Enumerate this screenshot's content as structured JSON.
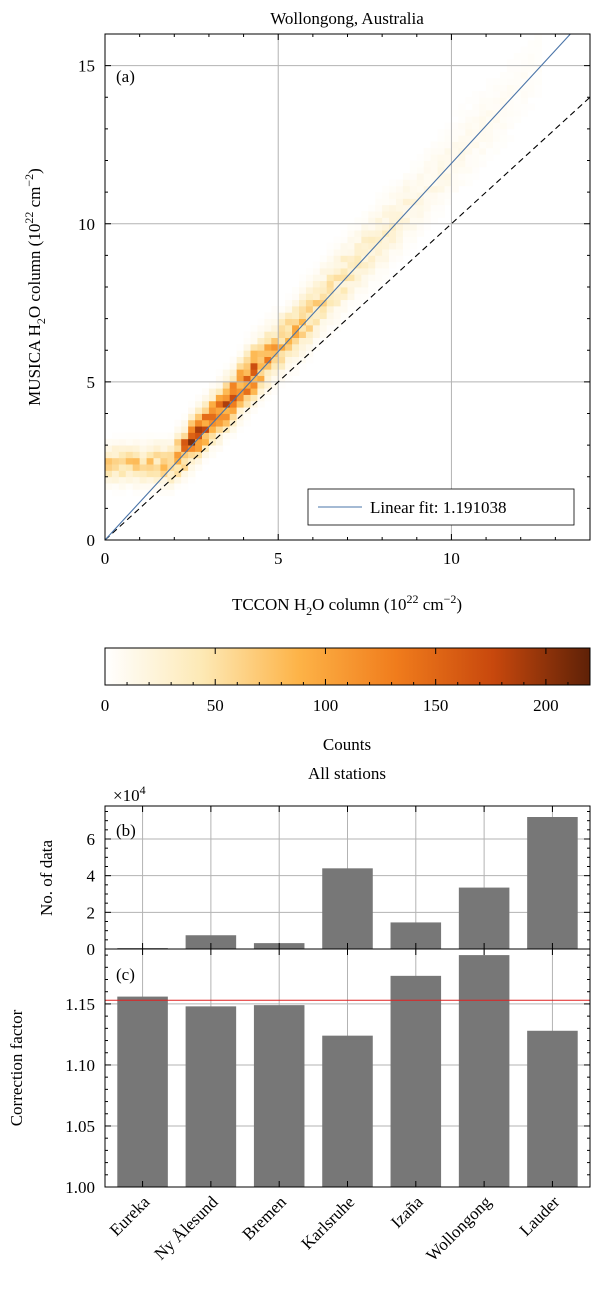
{
  "chart_data": [
    {
      "type": "heatmap",
      "title": "Wollongong, Australia",
      "panel_label": "(a)",
      "xlabel": {
        "base": "TCCON H",
        "sub": "2",
        "mid": "O column (10",
        "sup1": "22",
        "mid2": " cm",
        "sup2": "−2",
        "end": ")"
      },
      "ylabel": {
        "base": "MUSICA H",
        "sub": "2",
        "mid": "O column (10",
        "sup1": "22",
        "mid2": " cm",
        "sup2": "−2",
        "end": ")"
      },
      "xlim": [
        0,
        14
      ],
      "ylim": [
        0,
        16
      ],
      "xticks": [
        0,
        5,
        10
      ],
      "yticks": [
        0,
        5,
        10,
        15
      ],
      "grid": true,
      "fit_line": {
        "name": "Linear fit: 1.191038",
        "slope": 1.191038,
        "color": "#4a74a8"
      },
      "reference_line": {
        "slope": 1,
        "style": "dashed"
      },
      "legend_position": "bottom-right",
      "density_ridge": [
        {
          "x": 1.9,
          "y": 2.4,
          "count": 60
        },
        {
          "x": 2.4,
          "y": 3.0,
          "count": 150
        },
        {
          "x": 3.0,
          "y": 3.7,
          "count": 140
        },
        {
          "x": 3.6,
          "y": 4.4,
          "count": 130
        },
        {
          "x": 4.2,
          "y": 5.2,
          "count": 150
        },
        {
          "x": 4.8,
          "y": 5.9,
          "count": 90
        },
        {
          "x": 5.5,
          "y": 6.6,
          "count": 70
        },
        {
          "x": 6.3,
          "y": 7.6,
          "count": 50
        },
        {
          "x": 7.2,
          "y": 8.7,
          "count": 35
        },
        {
          "x": 8.2,
          "y": 9.8,
          "count": 25
        },
        {
          "x": 9.2,
          "y": 11.0,
          "count": 15
        },
        {
          "x": 10.4,
          "y": 12.4,
          "count": 10
        },
        {
          "x": 11.6,
          "y": 13.8,
          "count": 6
        },
        {
          "x": 12.6,
          "y": 15.2,
          "count": 3
        }
      ]
    },
    {
      "type": "colorbar",
      "label": "Counts",
      "range": [
        0,
        220
      ],
      "ticks": [
        0,
        50,
        100,
        150,
        200
      ],
      "colors": [
        "#ffffff",
        "#fde9b5",
        "#fdb347",
        "#f07c1c",
        "#c8480d",
        "#5e2107"
      ]
    },
    {
      "type": "bar",
      "title": "All stations",
      "panel_label": "(b)",
      "ylabel": "No. of data",
      "multiplier": {
        "base": "×10",
        "exp": "4"
      },
      "categories": [
        "Eureka",
        "Ny Ålesund",
        "Bremen",
        "Karlsruhe",
        "Izaña",
        "Wollongong",
        "Lauder"
      ],
      "values": [
        0.05,
        0.75,
        0.32,
        4.4,
        1.45,
        3.35,
        7.2
      ],
      "ylim": [
        0,
        7.8
      ],
      "yticks": [
        0,
        2,
        4,
        6
      ],
      "grid": true,
      "bar_color": "#777777"
    },
    {
      "type": "bar",
      "panel_label": "(c)",
      "ylabel": "Correction factor",
      "categories": [
        "Eureka",
        "Ny Ålesund",
        "Bremen",
        "Karlsruhe",
        "Izaña",
        "Wollongong",
        "Lauder"
      ],
      "values": [
        1.156,
        1.148,
        1.149,
        1.124,
        1.173,
        1.19,
        1.128
      ],
      "ylim": [
        1.0,
        1.195
      ],
      "yticks": [
        "1.00",
        "1.05",
        "1.10",
        "1.15"
      ],
      "mean_line": {
        "value": 1.153,
        "color": "#e02020"
      },
      "grid": true,
      "bar_color": "#777777"
    }
  ]
}
